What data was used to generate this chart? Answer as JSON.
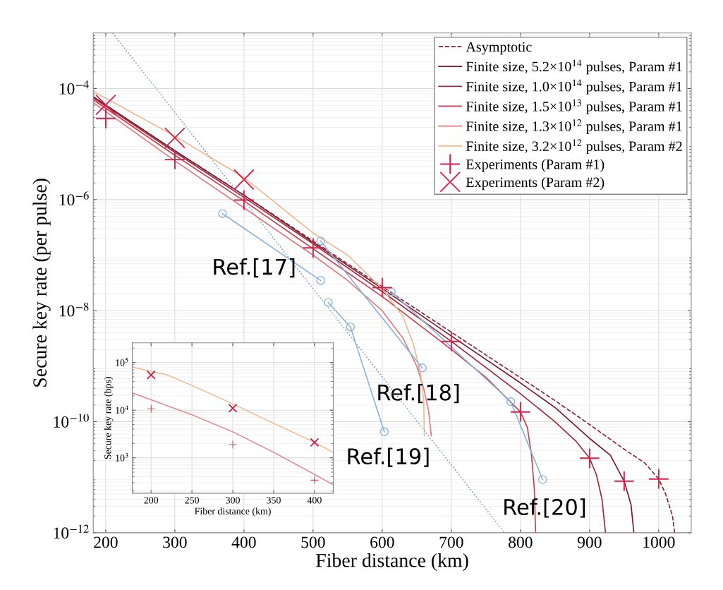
{
  "chart_data": [
    {
      "type": "line",
      "xlabel": "Fiber distance (km)",
      "ylabel": "Secure key rate (per pulse)",
      "log": "y",
      "grid": true,
      "legend": "top right",
      "xlim": [
        182,
        1047
      ],
      "xticks": [
        200,
        300,
        400,
        500,
        600,
        700,
        800,
        900,
        1000
      ],
      "ylim": [
        1e-12,
        0.001
      ],
      "yticks": [
        {
          "value": 1e-12,
          "label": "10$^{−12}$"
        },
        {
          "value": 1e-10,
          "label": "10$^{−10}$"
        },
        {
          "value": 1e-08,
          "label": "10$^{−8}$"
        },
        {
          "value": 1e-06,
          "label": "10$^{−6}$"
        },
        {
          "value": 0.0001,
          "label": "10$^{−4}$"
        }
      ],
      "series": [
        {
          "name": "Asymptotic",
          "line_style": "dashed",
          "color": "#8b2535",
          "x": [
            182,
            300,
            400,
            500,
            600,
            700,
            800,
            850,
            900,
            950,
            980,
            1000,
            1010,
            1020,
            1023
          ],
          "values": [
            7.1e-05,
            7.6e-06,
            1.2e-06,
            1.8e-07,
            2.7e-08,
            4.1e-09,
            6.2e-10,
            2.4e-10,
            8.9e-11,
            3.2e-11,
            1.8e-11,
            9.3e-12,
            5e-12,
            2e-12,
            1e-12
          ]
        },
        {
          "name": "Finite size, 5.2×10$^{14}$ pulses, Param #1",
          "color": "#7a1a2e",
          "x": [
            182,
            300,
            400,
            500,
            600,
            700,
            800,
            850,
            900,
            930,
            950,
            960,
            964
          ],
          "values": [
            7.1e-05,
            7.6e-06,
            1.2e-06,
            1.7e-07,
            2.5e-08,
            3.5e-09,
            5e-10,
            1.8e-10,
            5e-11,
            2.5e-11,
            8.5e-12,
            3.2e-12,
            1e-12
          ]
        },
        {
          "name": "Finite size, 1.0×10$^{14}$ pulses, Param #1",
          "color": "#a0283a",
          "x": [
            182,
            300,
            400,
            500,
            600,
            700,
            800,
            850,
            880,
            900,
            910,
            918,
            923
          ],
          "values": [
            6.8e-05,
            7.1e-06,
            1.1e-06,
            1.6e-07,
            2.2e-08,
            2.8e-09,
            3.2e-10,
            1e-10,
            4.5e-11,
            2.2e-11,
            1.1e-11,
            4e-12,
            1e-12
          ]
        },
        {
          "name": "Finite size, 1.5×10$^{13}$ pulses, Param #1",
          "color": "#c8404f",
          "x": [
            182,
            300,
            400,
            500,
            600,
            700,
            750,
            800,
            810,
            816,
            820,
            822
          ],
          "values": [
            6.3e-05,
            6.3e-06,
            9.5e-07,
            1.3e-07,
            1.8e-08,
            2e-09,
            6.3e-10,
            1.5e-10,
            7.9e-11,
            2.5e-11,
            6.3e-12,
            1e-12
          ]
        },
        {
          "name": "Finite size, 1.3×10$^{12}$ pulses, Param #1",
          "color": "#e07a80",
          "x": [
            182,
            300,
            400,
            500,
            550,
            600,
            630,
            650,
            660,
            667,
            671
          ],
          "values": [
            5.6e-05,
            5e-06,
            7.1e-07,
            1e-07,
            3.5e-08,
            1e-08,
            3.2e-09,
            1e-09,
            4e-10,
            1.6e-10,
            5.6e-11
          ]
        },
        {
          "name": "Finite size, 3.2×10$^{12}$ pulses, Param #2",
          "color": "#f0b890",
          "x": [
            182,
            300,
            400,
            500,
            550,
            600,
            630,
            645,
            655,
            660,
            661
          ],
          "values": [
            8.9e-05,
            1.4e-05,
            2.5e-06,
            2.5e-07,
            1e-07,
            2.5e-08,
            7.9e-09,
            2.5e-09,
            7.9e-10,
            2.5e-10,
            5.6e-11
          ]
        },
        {
          "name": "Experiments (Param #1)",
          "type": "scatter",
          "marker": "cross",
          "color": "#d6204a",
          "x": [
            200,
            300,
            400,
            500,
            600,
            700,
            800,
            900,
            950,
            1000
          ],
          "values": [
            2.9e-05,
            5.3e-06,
            9.8e-07,
            1.35e-07,
            2.6e-08,
            2.8e-09,
            1.5e-10,
            2.2e-11,
            8.5e-12,
            9.3e-12
          ]
        },
        {
          "name": "Experiments (Param #2)",
          "type": "scatter",
          "marker": "x",
          "color": "#d6204a",
          "x": [
            200,
            300,
            400
          ],
          "values": [
            5.1e-05,
            1.3e-05,
            2.3e-06
          ]
        },
        {
          "line_style": "dotted",
          "color": "#7fa0b8",
          "x": [
            210,
            777
          ],
          "values": [
            0.001,
            1e-12
          ]
        },
        {
          "marker": "circle",
          "color": "#8fb2d8",
          "x": [
            369,
            511
          ],
          "values": [
            5.6e-07,
            3.5e-08
          ]
        },
        {
          "marker": "circle",
          "color": "#8fb2d8",
          "x": [
            511,
            658
          ],
          "values": [
            1.8e-07,
            9.3e-10
          ]
        },
        {
          "marker": "circle",
          "color": "#8fb2d8",
          "x": [
            522,
            554,
            603
          ],
          "values": [
            1.4e-08,
            5.1e-09,
            6.6e-11
          ]
        },
        {
          "marker": "circle",
          "color": "#8fb2d8",
          "x": [
            613,
            786,
            832
          ],
          "values": [
            2.2e-08,
            2.3e-10,
            9.1e-12
          ]
        }
      ],
      "annotations": [
        {
          "text": "Ref.[17]",
          "x": 511,
          "y": 3.5e-08
        },
        {
          "text": "Ref.[18]",
          "x": 658,
          "y": 9.3e-10
        },
        {
          "text": "Ref.[19]",
          "x": 603,
          "y": 6.6e-11
        },
        {
          "text": "Ref.[20]",
          "x": 832,
          "y": 9.1e-12
        }
      ]
    },
    {
      "type": "line",
      "xlabel": "Fiber distance (km)",
      "ylabel": "Secure key rate (bps)",
      "log": "y",
      "grid": true,
      "xlim": [
        177,
        423
      ],
      "xticks": [
        200,
        250,
        300,
        350,
        400
      ],
      "ylim": [
        180,
        260000.0
      ],
      "yticks": [
        {
          "value": 1000,
          "label": "10$^{3}$"
        },
        {
          "value": 10000,
          "label": "10$^{4}$"
        },
        {
          "value": 100000,
          "label": "10$^{5}$"
        }
      ],
      "series": [
        {
          "color": "#f2b48a",
          "x": [
            177,
            220,
            250,
            300,
            350,
            400,
            423
          ],
          "values": [
            80000.0,
            55000.0,
            33000.0,
            13500.0,
            5300.0,
            2100.0,
            1300.0
          ]
        },
        {
          "color": "#e27d86",
          "x": [
            177,
            250,
            300,
            350,
            400,
            423
          ],
          "values": [
            23000.0,
            8000.0,
            3500.0,
            1300.0,
            450,
            270
          ]
        },
        {
          "type": "scatter",
          "marker": "x",
          "color": "#c0204a",
          "x": [
            200,
            300,
            400
          ],
          "values": [
            55000.0,
            11000.0,
            2100.0
          ]
        },
        {
          "type": "scatter",
          "marker": "cross",
          "color": "#c0204a",
          "x": [
            200,
            300,
            400
          ],
          "values": [
            10700.0,
            1900.0,
            340
          ]
        }
      ]
    }
  ]
}
